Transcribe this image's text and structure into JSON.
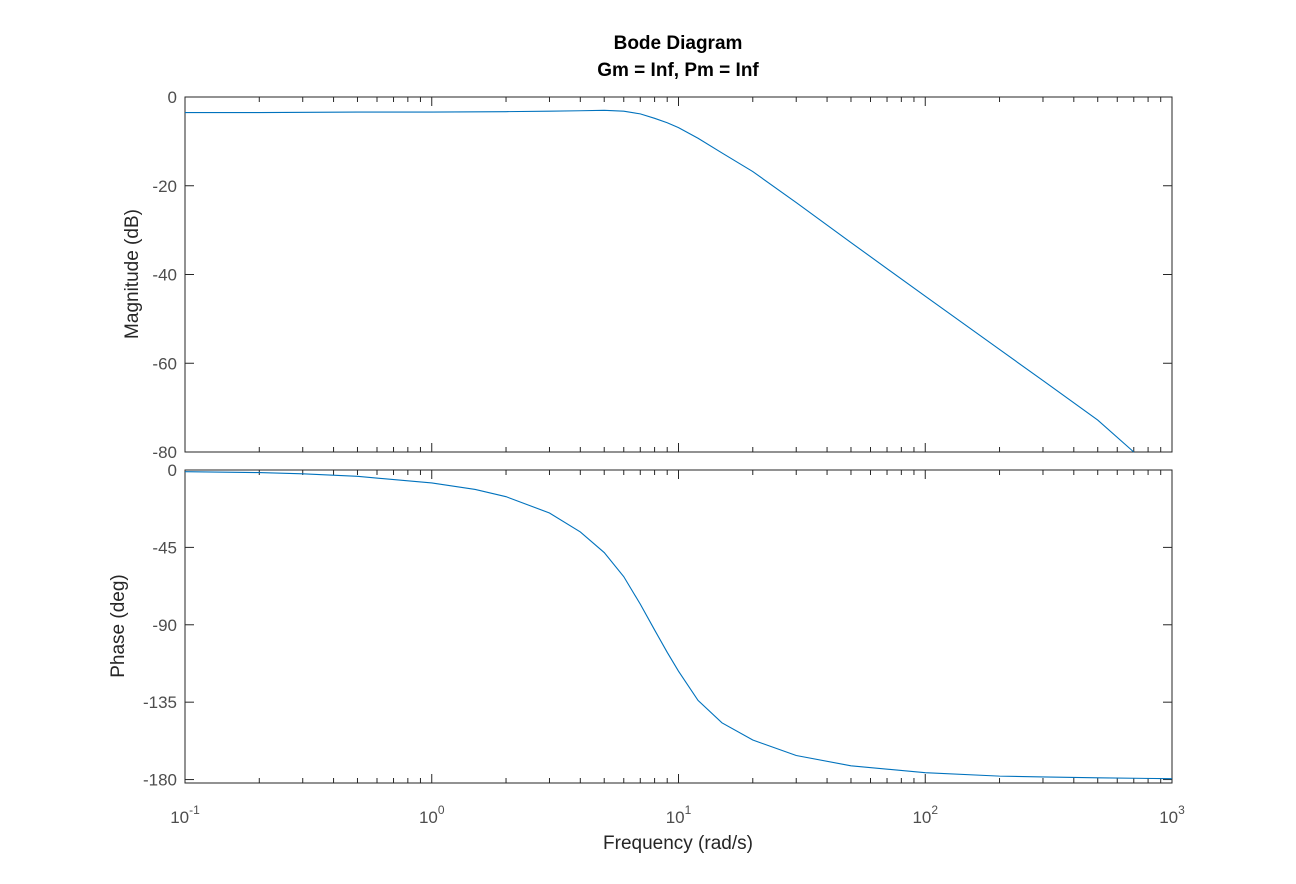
{
  "chart_data": {
    "type": "line",
    "title": "Bode Diagram",
    "subtitle": "Gm = Inf,  Pm = Inf",
    "xlabel": "Frequency  (rad/s)",
    "x_scale": "log",
    "xlim": [
      0.1,
      1000
    ],
    "x_ticks": [
      {
        "base": "10",
        "exp": "-1",
        "value": 0.1
      },
      {
        "base": "10",
        "exp": "0",
        "value": 1
      },
      {
        "base": "10",
        "exp": "1",
        "value": 10
      },
      {
        "base": "10",
        "exp": "2",
        "value": 100
      },
      {
        "base": "10",
        "exp": "3",
        "value": 1000
      }
    ],
    "line_color": "#0072bd",
    "panels": [
      {
        "name": "magnitude",
        "ylabel": "Magnitude (dB)",
        "ylim": [
          -80,
          0
        ],
        "y_ticks": [
          0,
          -20,
          -40,
          -60,
          -80
        ],
        "y_tick_labels": [
          "0",
          "-20",
          "-40",
          "-60",
          "-80"
        ],
        "x": [
          0.1,
          0.2,
          0.5,
          1,
          2,
          3,
          4,
          5,
          6,
          7,
          8,
          9,
          10,
          12,
          15,
          20,
          30,
          50,
          100,
          200,
          300,
          500,
          700
        ],
        "y": [
          -3.5,
          -3.5,
          -3.4,
          -3.4,
          -3.3,
          -3.2,
          -3.1,
          -3.0,
          -3.2,
          -3.8,
          -4.8,
          -5.8,
          -6.9,
          -9.3,
          -12.6,
          -16.8,
          -23.8,
          -32.8,
          -44.9,
          -56.9,
          -63.9,
          -72.8,
          -80.0
        ]
      },
      {
        "name": "phase",
        "ylabel": "Phase (deg)",
        "ylim": [
          -182,
          0
        ],
        "y_ticks": [
          0,
          -45,
          -90,
          -135,
          -180
        ],
        "y_tick_labels": [
          "0",
          "-45",
          "-90",
          "-135",
          "-180"
        ],
        "x": [
          0.1,
          0.2,
          0.3,
          0.5,
          1,
          1.5,
          2,
          3,
          4,
          5,
          6,
          7,
          8,
          9,
          10,
          12,
          15,
          20,
          30,
          50,
          100,
          200,
          300,
          500,
          1000
        ],
        "y": [
          -1,
          -1.5,
          -2.2,
          -3.7,
          -7.5,
          -11.3,
          -15.5,
          -25,
          -36,
          -48,
          -62,
          -78,
          -93,
          -106,
          -117,
          -134,
          -147,
          -157,
          -166,
          -172,
          -176,
          -178,
          -178.5,
          -179,
          -179.5
        ]
      }
    ]
  }
}
